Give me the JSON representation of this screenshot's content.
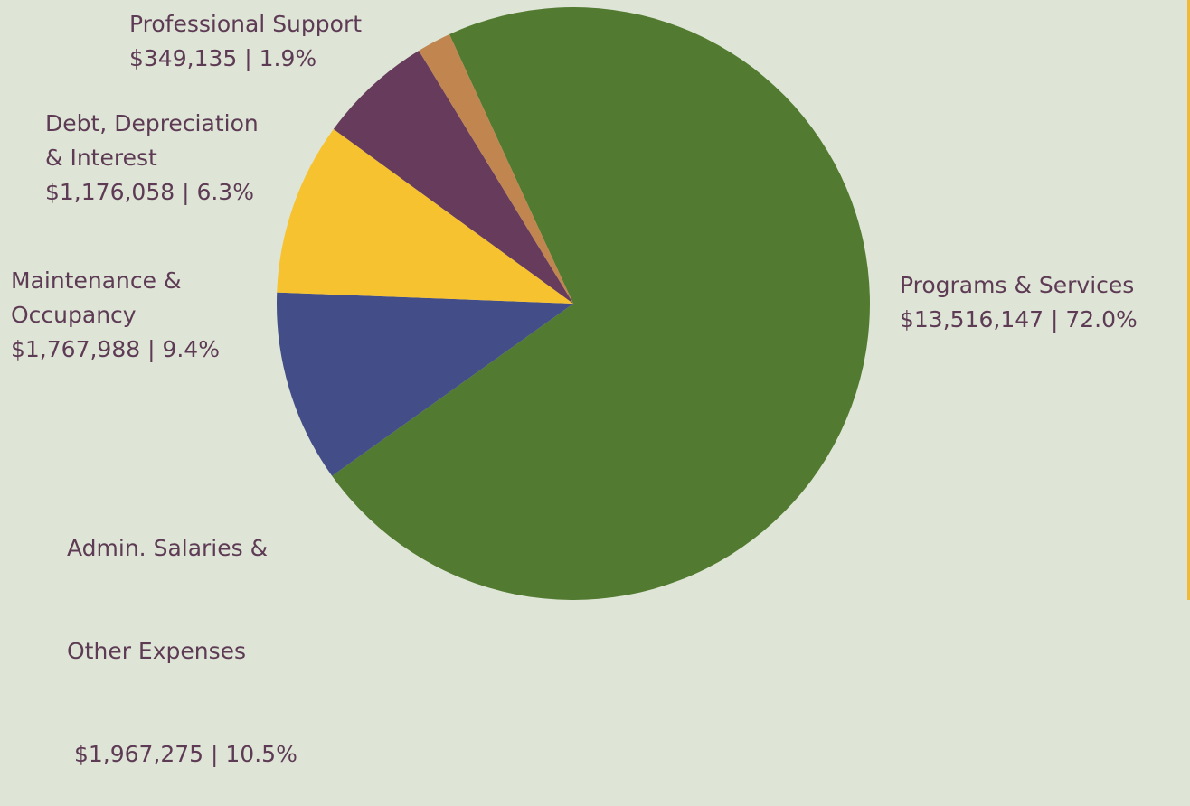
{
  "chart_data": {
    "type": "pie",
    "slices": [
      {
        "name": "Programs & Services",
        "label_lines": [
          "Programs & Services"
        ],
        "value": 13516147,
        "value_text": "$13,516,147 | 72.0%",
        "percent": 72.0,
        "color": "#527b31"
      },
      {
        "name": "Admin. Salaries & Other Expenses",
        "label_lines": [
          "Admin. Salaries &",
          "Other Expenses"
        ],
        "value": 1967275,
        "value_text": " $1,967,275 | 10.5%",
        "percent": 10.5,
        "color": "#434d88"
      },
      {
        "name": "Maintenance & Occupancy",
        "label_lines": [
          "Maintenance &",
          "Occupancy"
        ],
        "value": 1767988,
        "value_text": "$1,767,988 | 9.4%",
        "percent": 9.4,
        "color": "#f7c22f"
      },
      {
        "name": "Debt, Depreciation & Interest",
        "label_lines": [
          "Debt, Depreciation",
          "& Interest"
        ],
        "value": 1176058,
        "value_text": "$1,176,058 | 6.3%",
        "percent": 6.3,
        "color": "#663b5b"
      },
      {
        "name": "Professional Support",
        "label_lines": [
          "Professional Support"
        ],
        "value": 349135,
        "value_text": "$349,135 | 1.9%",
        "percent": 1.9,
        "color": "#c18550"
      }
    ]
  },
  "colors": {
    "background": "#dee5d6",
    "label_text": "#5e3b55",
    "accent_edge": "#f0b93a"
  }
}
